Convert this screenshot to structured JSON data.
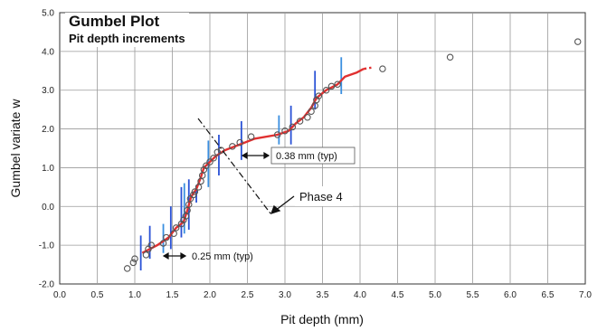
{
  "chart_data": {
    "type": "scatter",
    "title": "Gumbel Plot",
    "subtitle": "Pit depth increments",
    "xlabel": "Pit depth (mm)",
    "ylabel": "Gumbel variate w",
    "xlim": [
      0.0,
      7.0
    ],
    "ylim": [
      -2.0,
      5.0
    ],
    "xticks": [
      "0.0",
      "0.5",
      "1.0",
      "1.5",
      "2.0",
      "2.5",
      "3.0",
      "3.5",
      "4.0",
      "4.5",
      "5.0",
      "5.5",
      "6.0",
      "6.5",
      "7.0"
    ],
    "yticks": [
      "-2.0",
      "-1.0",
      "0.0",
      "1.0",
      "2.0",
      "3.0",
      "4.0",
      "5.0"
    ],
    "grid": true,
    "colors": {
      "points": "#555555",
      "fit": "#e03030",
      "bands": "#2a52d6",
      "bands_light": "#3a8fe0"
    },
    "series": [
      {
        "points": [
          [
            0.9,
            -1.6
          ],
          [
            0.98,
            -1.45
          ],
          [
            1.0,
            -1.35
          ],
          [
            1.15,
            -1.25
          ],
          [
            1.18,
            -1.1
          ],
          [
            1.22,
            -1.0
          ],
          [
            1.38,
            -0.95
          ],
          [
            1.42,
            -0.8
          ],
          [
            1.52,
            -0.7
          ],
          [
            1.55,
            -0.55
          ],
          [
            1.62,
            -0.45
          ],
          [
            1.65,
            -0.35
          ],
          [
            1.68,
            -0.25
          ],
          [
            1.7,
            -0.1
          ],
          [
            1.72,
            0.05
          ],
          [
            1.74,
            0.2
          ],
          [
            1.78,
            0.3
          ],
          [
            1.8,
            0.38
          ],
          [
            1.85,
            0.5
          ],
          [
            1.88,
            0.65
          ],
          [
            1.9,
            0.8
          ],
          [
            1.92,
            0.95
          ],
          [
            1.95,
            1.05
          ],
          [
            2.0,
            1.15
          ],
          [
            2.05,
            1.25
          ],
          [
            2.1,
            1.4
          ],
          [
            2.15,
            1.45
          ],
          [
            2.3,
            1.55
          ],
          [
            2.4,
            1.65
          ],
          [
            2.55,
            1.8
          ],
          [
            2.9,
            1.85
          ],
          [
            3.0,
            1.95
          ],
          [
            3.1,
            2.05
          ],
          [
            3.2,
            2.2
          ],
          [
            3.3,
            2.3
          ],
          [
            3.35,
            2.45
          ],
          [
            3.4,
            2.6
          ],
          [
            3.42,
            2.75
          ],
          [
            3.45,
            2.85
          ],
          [
            3.55,
            3.0
          ],
          [
            3.62,
            3.1
          ],
          [
            3.7,
            3.15
          ],
          [
            4.3,
            3.55
          ],
          [
            5.2,
            3.85
          ],
          [
            6.9,
            4.25
          ]
        ]
      }
    ],
    "fit_line": [
      [
        1.1,
        -1.2
      ],
      [
        1.3,
        -1.0
      ],
      [
        1.45,
        -0.8
      ],
      [
        1.55,
        -0.55
      ],
      [
        1.65,
        -0.4
      ],
      [
        1.7,
        -0.1
      ],
      [
        1.75,
        0.25
      ],
      [
        1.82,
        0.45
      ],
      [
        1.88,
        0.75
      ],
      [
        1.92,
        1.0
      ],
      [
        2.0,
        1.15
      ],
      [
        2.08,
        1.3
      ],
      [
        2.2,
        1.45
      ],
      [
        2.4,
        1.6
      ],
      [
        2.6,
        1.75
      ],
      [
        2.9,
        1.85
      ],
      [
        3.05,
        1.95
      ],
      [
        3.15,
        2.15
      ],
      [
        3.25,
        2.3
      ],
      [
        3.35,
        2.55
      ],
      [
        3.42,
        2.8
      ],
      [
        3.55,
        3.0
      ],
      [
        3.7,
        3.15
      ],
      [
        3.8,
        3.35
      ],
      [
        3.95,
        3.45
      ],
      [
        4.05,
        3.55
      ]
    ],
    "bands": [
      {
        "x": 1.08,
        "y0": -1.65,
        "y1": -0.75
      },
      {
        "x": 1.2,
        "y0": -1.35,
        "y1": -0.5
      },
      {
        "x": 1.38,
        "y0": -1.2,
        "y1": -0.45
      },
      {
        "x": 1.48,
        "y0": -1.1,
        "y1": 0.0
      },
      {
        "x": 1.62,
        "y0": -0.8,
        "y1": 0.5
      },
      {
        "x": 1.66,
        "y0": -0.7,
        "y1": 0.6
      },
      {
        "x": 1.72,
        "y0": -0.6,
        "y1": 0.7
      },
      {
        "x": 1.82,
        "y0": 0.1,
        "y1": 0.55
      },
      {
        "x": 1.98,
        "y0": 0.5,
        "y1": 1.7
      },
      {
        "x": 2.12,
        "y0": 0.8,
        "y1": 1.85
      },
      {
        "x": 2.42,
        "y0": 1.2,
        "y1": 2.2
      },
      {
        "x": 2.92,
        "y0": 1.6,
        "y1": 2.35
      },
      {
        "x": 3.08,
        "y0": 1.6,
        "y1": 2.6
      },
      {
        "x": 3.4,
        "y0": 2.5,
        "y1": 3.5
      },
      {
        "x": 3.75,
        "y0": 2.9,
        "y1": 3.85
      }
    ],
    "annotations": {
      "increment_small": "0.25 mm (typ)",
      "increment_large": "0.38 mm (typ)",
      "phase": "Phase 4"
    }
  }
}
